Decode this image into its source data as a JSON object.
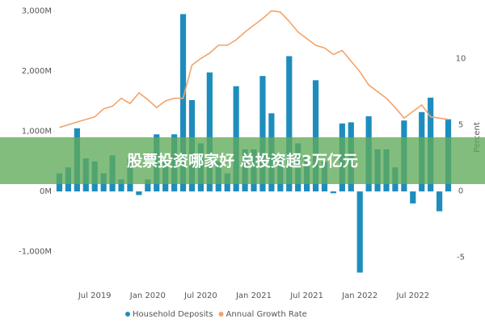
{
  "chart_data": {
    "type": "bar_line",
    "banner": "股票投资哪家好 总投资超3万亿元",
    "y2_label": "Percent",
    "categories": [
      null,
      null,
      null,
      null,
      "Jul 2019",
      null,
      null,
      null,
      null,
      null,
      "Jan 2020",
      null,
      null,
      null,
      null,
      null,
      "Jul 2020",
      null,
      null,
      null,
      null,
      null,
      "Jan 2021",
      null,
      null,
      null,
      null,
      null,
      "Jul 2021",
      null,
      null,
      null,
      null,
      null,
      "Jan 2022",
      null,
      null,
      null,
      null,
      null,
      "Jul 2022",
      null,
      null,
      null,
      null
    ],
    "series": [
      {
        "name": "Household Deposits",
        "color": "#1e8dbd",
        "values": [
          300,
          400,
          1050,
          550,
          500,
          300,
          600,
          200,
          550,
          -60,
          200,
          950,
          500,
          950,
          2950,
          1520,
          800,
          1980,
          500,
          300,
          1750,
          700,
          700,
          1920,
          1300,
          600,
          2250,
          800,
          600,
          1850,
          500,
          -30,
          1130,
          1150,
          -1350,
          1250,
          700,
          700,
          400,
          1180,
          -200,
          1320,
          1560,
          -330,
          1200
        ]
      },
      {
        "name": "Annual Growth Rate",
        "color": "#f4a36a",
        "axis": "y2",
        "values": [
          4.8,
          5,
          5.2,
          5.4,
          5.6,
          6.2,
          6.4,
          7,
          6.6,
          7.4,
          6.9,
          6.3,
          6.8,
          7,
          7,
          9.5,
          10,
          10.4,
          11,
          11,
          11.4,
          12,
          12.5,
          13,
          13.6,
          13.5,
          12.8,
          12,
          11.5,
          11,
          10.8,
          10.3,
          10.6,
          9.8,
          9,
          8,
          7.5,
          7,
          6.3,
          5.5,
          6,
          6.5,
          5.6,
          5.5,
          5.4
        ]
      }
    ],
    "ylim": [
      -1450,
      3050
    ],
    "yticks": [
      {
        "value": 3000,
        "label": "3,000M"
      },
      {
        "value": 2000,
        "label": "2,000M"
      },
      {
        "value": 1000,
        "label": "1,000M"
      },
      {
        "value": 0,
        "label": "0M"
      },
      {
        "value": -1000,
        "label": "-1,000M"
      }
    ],
    "y2lim": [
      -6.6,
      13.8
    ],
    "y2ticks": [
      10,
      5,
      0,
      -5
    ]
  }
}
